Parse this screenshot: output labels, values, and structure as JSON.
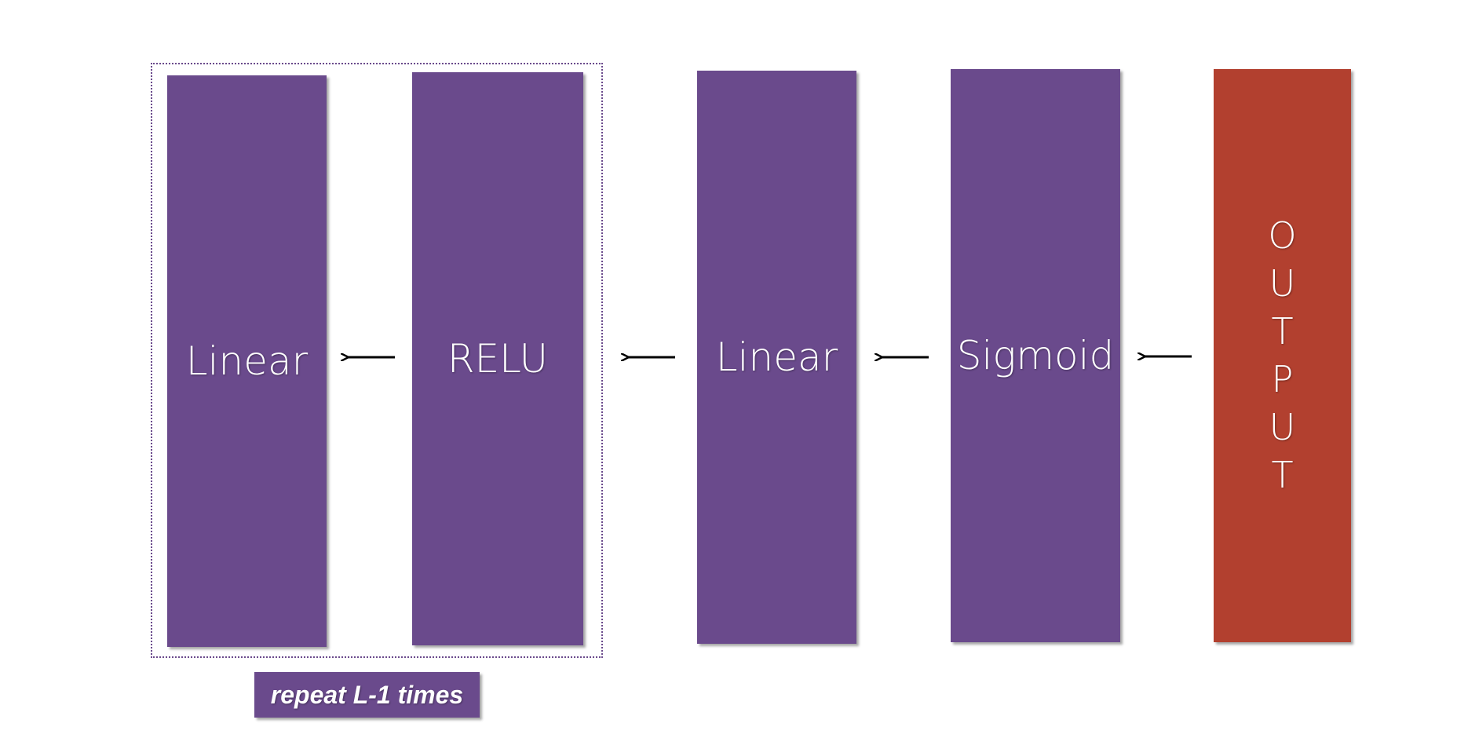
{
  "blocks": {
    "linear_1": "Linear",
    "relu": "RELU",
    "linear_2": "Linear",
    "sigmoid": "Sigmoid",
    "output": [
      "O",
      "U",
      "T",
      "P",
      "U",
      "T"
    ]
  },
  "repeat_label": "repeat L-1 times",
  "colors": {
    "layer": "#6a4a8c",
    "output": "#b2402f",
    "arrow": "#000000"
  }
}
